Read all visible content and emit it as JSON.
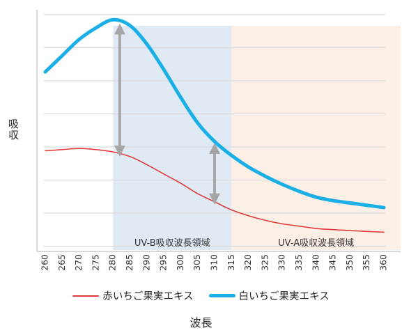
{
  "chart_data": {
    "type": "line",
    "xlabel": "波長",
    "ylabel": "吸収",
    "x": [
      260,
      265,
      270,
      275,
      280,
      285,
      290,
      295,
      300,
      305,
      310,
      315,
      320,
      325,
      330,
      335,
      340,
      345,
      350,
      355,
      360
    ],
    "xlim": [
      260,
      360
    ],
    "ylim": [
      0,
      1
    ],
    "grid": true,
    "legend_position": "bottom",
    "series": [
      {
        "name": "赤いちご果実エキス",
        "color": "#e03c3c",
        "values": [
          0.41,
          0.415,
          0.42,
          0.415,
          0.405,
          0.385,
          0.35,
          0.31,
          0.27,
          0.225,
          0.19,
          0.155,
          0.13,
          0.11,
          0.095,
          0.085,
          0.075,
          0.07,
          0.066,
          0.062,
          0.059
        ]
      },
      {
        "name": "白いちご果実エキス",
        "color": "#1aafe6",
        "values": [
          0.75,
          0.82,
          0.89,
          0.94,
          0.975,
          0.95,
          0.87,
          0.76,
          0.64,
          0.53,
          0.45,
          0.39,
          0.34,
          0.3,
          0.265,
          0.235,
          0.21,
          0.195,
          0.185,
          0.175,
          0.165
        ]
      }
    ],
    "regions": [
      {
        "label": "UV-B吸収波長領域",
        "from": 280,
        "to": 315,
        "color": "#dfeaf5"
      },
      {
        "label": "UV-A吸収波長領域",
        "from": 315,
        "to": 365,
        "color": "#fcefe6"
      }
    ]
  }
}
